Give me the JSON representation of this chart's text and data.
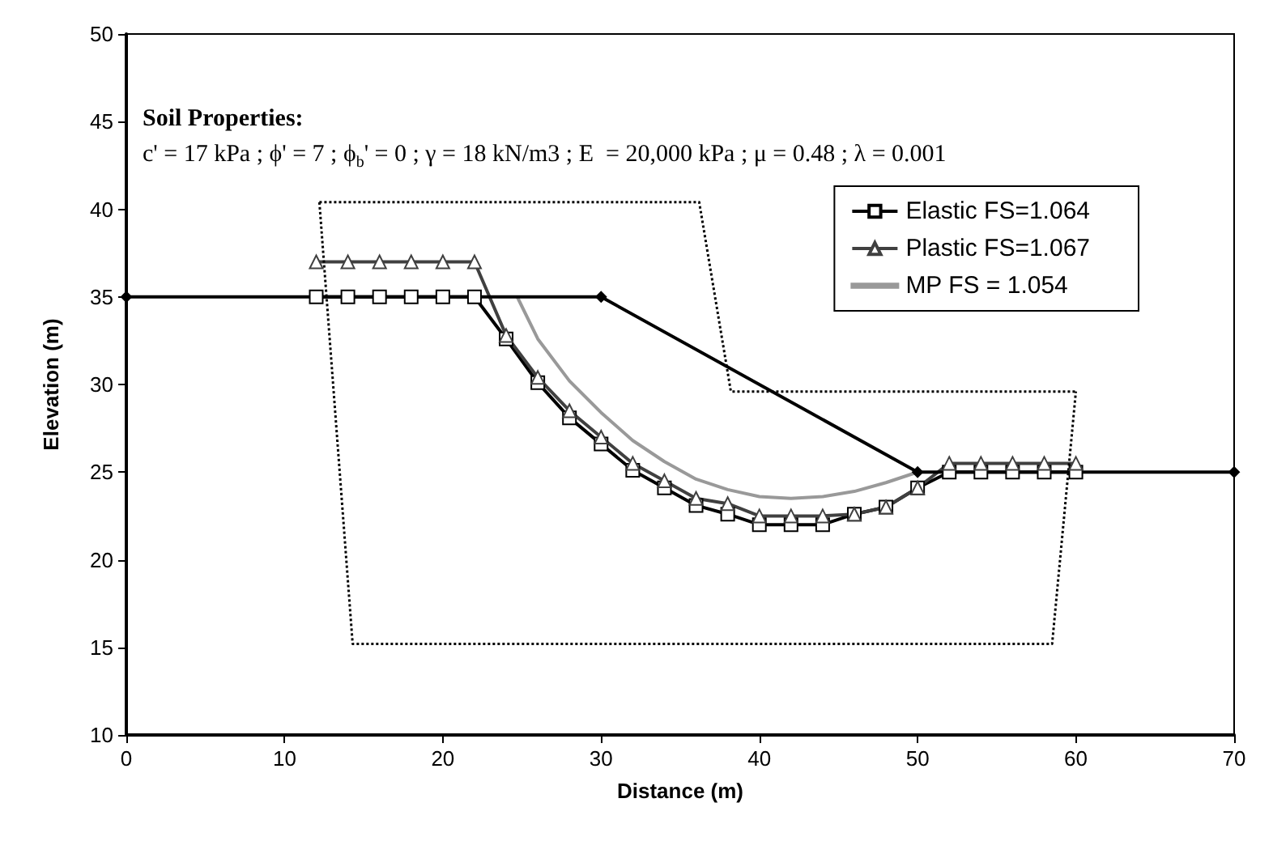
{
  "chart_data": {
    "type": "line",
    "xlabel": "Distance (m)",
    "ylabel": "Elevation (m)",
    "xlim": [
      0,
      70
    ],
    "xticks": [
      0,
      10,
      20,
      30,
      40,
      50,
      60,
      70
    ],
    "ylim": [
      10,
      50
    ],
    "yticks": [
      10,
      15,
      20,
      25,
      30,
      35,
      40,
      45,
      50
    ],
    "grid": false,
    "legend": "top right",
    "annotations": [
      "Soil Properties:",
      "c' = 17 kPa ; ϕ' = 7 ; ϕ$_{b}$' = 0 ; γ = 18 kN/m3 ; E  = 20,000 kPa ; μ = 0.48 ; λ = 0.001"
    ],
    "series": [
      {
        "name": "Elastic FS=1.064",
        "color": "#000000",
        "marker": "square",
        "line_style": "solid",
        "x": [
          12,
          14,
          16,
          18,
          20,
          22,
          24,
          26,
          28,
          30,
          32,
          34,
          36,
          38,
          40,
          42,
          44,
          46,
          48,
          50,
          52,
          54,
          56,
          58,
          60
        ],
        "values": [
          35,
          35,
          35,
          35,
          35,
          35,
          32.6,
          30.1,
          28.1,
          26.6,
          25.1,
          24.1,
          23.1,
          22.6,
          22,
          22,
          22,
          22.6,
          23,
          24.1,
          25,
          25,
          25,
          25,
          25
        ]
      },
      {
        "name": "Plastic FS=1.067",
        "color": "#404040",
        "marker": "triangle",
        "line_style": "solid",
        "x": [
          12,
          14,
          16,
          18,
          20,
          22,
          24,
          26,
          28,
          30,
          32,
          34,
          36,
          38,
          40,
          42,
          44,
          46,
          48,
          50,
          52,
          54,
          56,
          58,
          60
        ],
        "values": [
          37,
          37,
          37,
          37,
          37,
          37,
          32.8,
          30.4,
          28.5,
          27,
          25.5,
          24.5,
          23.5,
          23.2,
          22.5,
          22.5,
          22.5,
          22.6,
          23,
          24.1,
          25.5,
          25.5,
          25.5,
          25.5,
          25.5
        ]
      },
      {
        "name": "MP FS = 1.054",
        "color": "#999999",
        "marker": "none",
        "line_style": "solid",
        "x": [
          24.7,
          26,
          28,
          30,
          32,
          34,
          36,
          38,
          40,
          42,
          44,
          46,
          48,
          50
        ],
        "values": [
          35,
          32.6,
          30.2,
          28.4,
          26.8,
          25.6,
          24.6,
          24,
          23.6,
          23.5,
          23.6,
          23.9,
          24.4,
          25
        ]
      },
      {
        "color": "#000000",
        "marker": "diamond",
        "line_style": "solid",
        "x": [
          0,
          30,
          50,
          70
        ],
        "values": [
          35,
          35,
          25,
          25
        ]
      },
      {
        "color": "#000000",
        "marker": "none",
        "line_style": "dotted",
        "x": [
          12.2,
          36.2,
          38.2,
          60
        ],
        "values": [
          40.4,
          40.4,
          29.6,
          29.6
        ]
      },
      {
        "color": "#000000",
        "marker": "none",
        "line_style": "dotted",
        "x": [
          12.2,
          14.3,
          58.5,
          60
        ],
        "values": [
          40.4,
          15.2,
          15.2,
          29.6
        ]
      }
    ]
  }
}
